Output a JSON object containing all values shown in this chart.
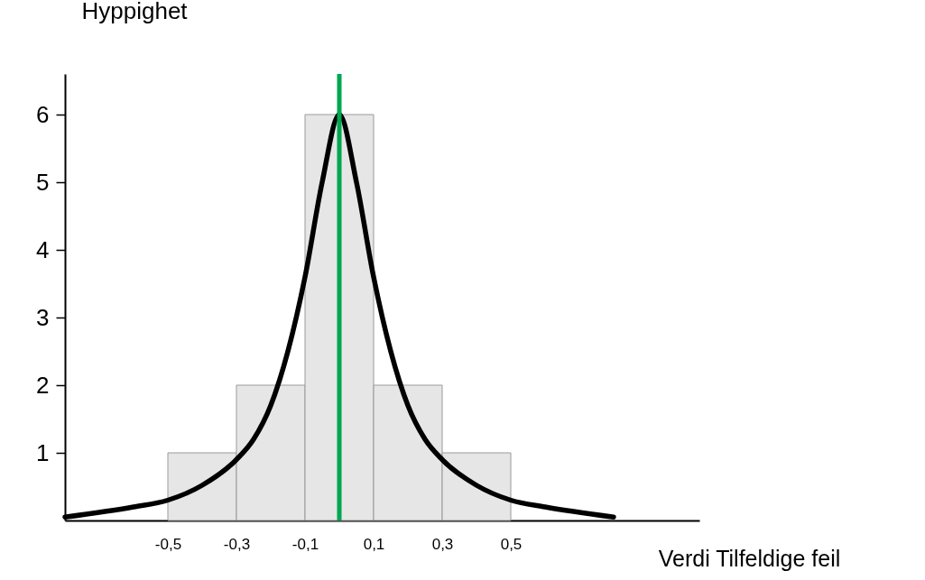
{
  "chart_data": {
    "type": "histogram",
    "xlabel": "Verdi Tilfeldige feil",
    "ylabel": "Hyppighet",
    "xlim": [
      -0.8,
      1.05
    ],
    "ylim": [
      0,
      6.6
    ],
    "xticks": [
      {
        "value": -0.5,
        "label": "-0,5"
      },
      {
        "value": -0.3,
        "label": "-0,3"
      },
      {
        "value": -0.1,
        "label": "-0,1"
      },
      {
        "value": 0.1,
        "label": "0,1"
      },
      {
        "value": 0.3,
        "label": "0,3"
      },
      {
        "value": 0.5,
        "label": "0,5"
      }
    ],
    "yticks": [
      1,
      2,
      3,
      4,
      5,
      6
    ],
    "grid": false,
    "series": [
      {
        "color": "#e6e6e6",
        "bins": [
          -0.5,
          -0.3,
          -0.1,
          0.1,
          0.3,
          0.5
        ],
        "values": [
          1,
          2,
          6,
          2,
          1
        ]
      },
      {
        "type": "line",
        "color": "#000000",
        "x": [
          -0.8,
          -0.6,
          -0.5,
          -0.4,
          -0.3,
          -0.25,
          -0.2,
          -0.15,
          -0.1,
          -0.05,
          0,
          0.05,
          0.1,
          0.15,
          0.2,
          0.25,
          0.3,
          0.4,
          0.5,
          0.6,
          0.8
        ],
        "values": [
          0.05,
          0.2,
          0.3,
          0.52,
          0.9,
          1.2,
          1.7,
          2.5,
          3.6,
          5.0,
          6,
          5.0,
          3.6,
          2.5,
          1.7,
          1.2,
          0.9,
          0.52,
          0.3,
          0.2,
          0.05
        ]
      }
    ],
    "ref_lines": [
      {
        "axis": "x",
        "value": 0,
        "color": "#00a651"
      }
    ]
  }
}
